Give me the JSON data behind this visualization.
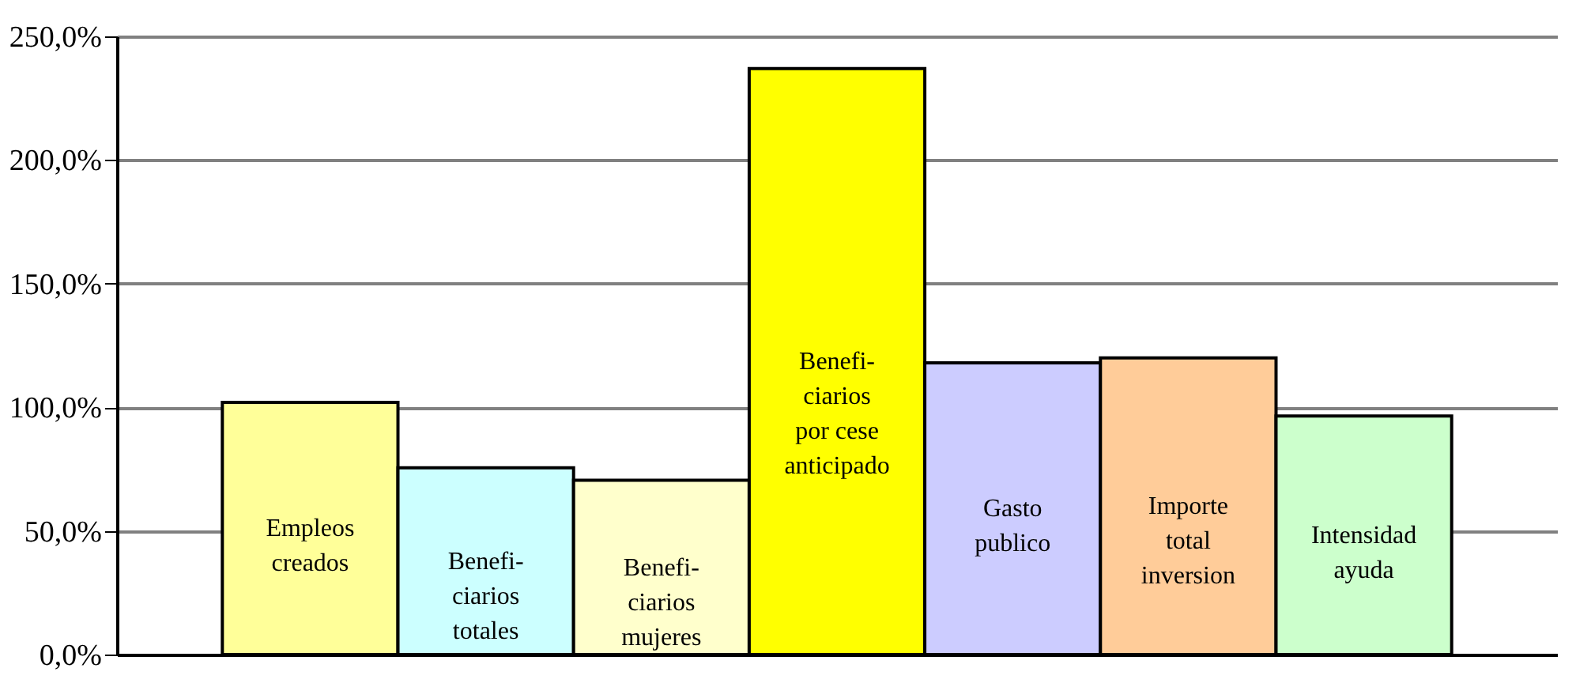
{
  "chart_data": {
    "type": "bar",
    "categories": [
      "Empleos\ncreados",
      "Benefi-\nciarios\ntotales",
      "Benefi-\nciarios\nmujeres",
      "Benefi-\nciarios\npor cese\nanticipado",
      "Gasto\npublico",
      "Importe\ntotal\ninversion",
      "Intensidad\nayuda"
    ],
    "values": [
      102,
      75.5,
      70.5,
      237,
      118,
      120,
      96.5
    ],
    "colors": [
      "#ffff99",
      "#ccffff",
      "#ffffcc",
      "#ffff00",
      "#ccccff",
      "#ffcc99",
      "#ccffcc"
    ],
    "ylim": [
      0,
      250
    ],
    "yticks": [
      {
        "value": 0,
        "label": "0,0%"
      },
      {
        "value": 50,
        "label": "50,0%"
      },
      {
        "value": 100,
        "label": "100,0%"
      },
      {
        "value": 150,
        "label": "150,0%"
      },
      {
        "value": 200,
        "label": "200,0%"
      },
      {
        "value": 250,
        "label": "250,0%"
      }
    ],
    "grid": "y",
    "tick_labels": "y"
  }
}
